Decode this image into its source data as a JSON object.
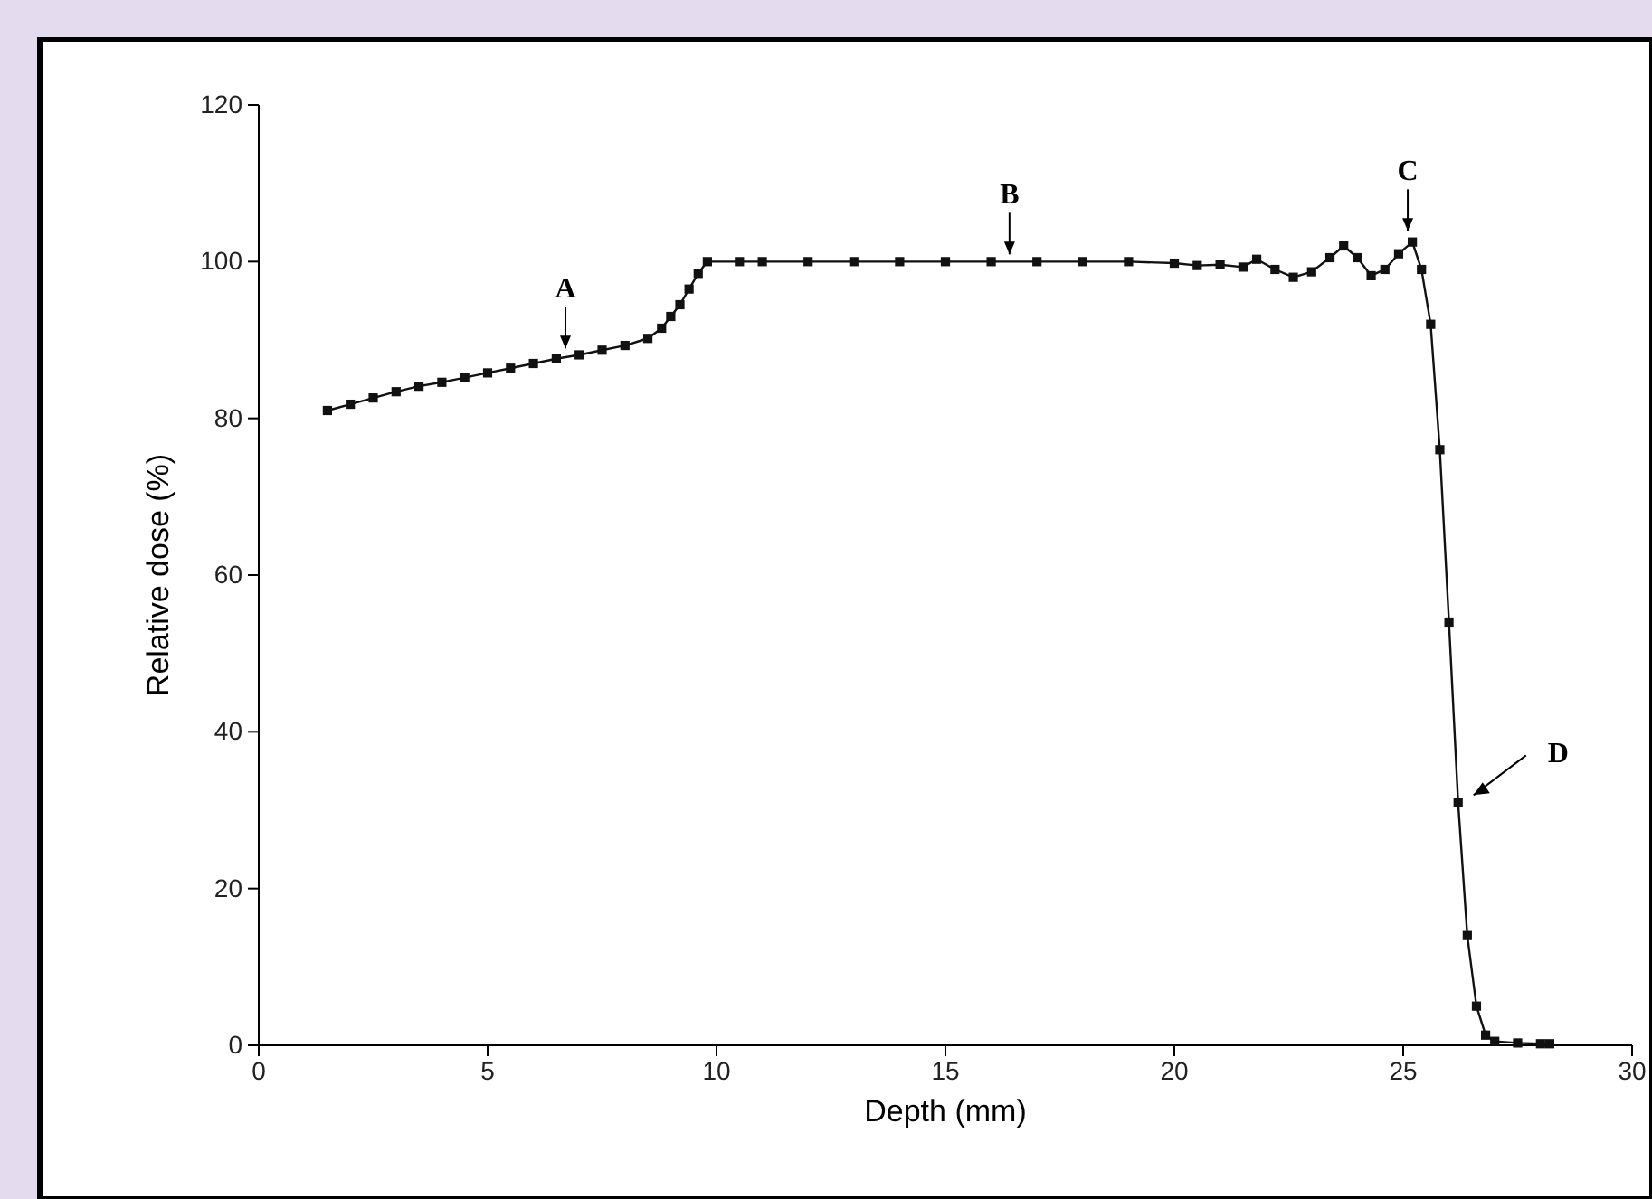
{
  "chart_data": {
    "type": "line",
    "xlabel": "Depth (mm)",
    "ylabel": "Relative dose (%)",
    "xlim": [
      0,
      30
    ],
    "ylim": [
      0,
      120
    ],
    "xticks": [
      0,
      5,
      10,
      15,
      20,
      25,
      30
    ],
    "yticks": [
      0,
      20,
      40,
      60,
      80,
      100,
      120
    ],
    "marker": "square",
    "grid": false,
    "series": [
      {
        "color": "#111111",
        "x": [
          1.5,
          2,
          2.5,
          3,
          3.5,
          4,
          4.5,
          5,
          5.5,
          6,
          6.5,
          7,
          7.5,
          8,
          8.5,
          8.8,
          9,
          9.2,
          9.4,
          9.6,
          9.8,
          10.5,
          11,
          12,
          13,
          14,
          15,
          16,
          17,
          18,
          19,
          20,
          20.5,
          21,
          21.5,
          21.8,
          22.2,
          22.6,
          23,
          23.4,
          23.7,
          24,
          24.3,
          24.6,
          24.9,
          25.2,
          25.4,
          25.6,
          25.8,
          26,
          26.2,
          26.4,
          26.6,
          26.8,
          27,
          27.5,
          28,
          28.2
        ],
        "values": [
          81,
          81.8,
          82.6,
          83.4,
          84.1,
          84.6,
          85.2,
          85.8,
          86.4,
          87,
          87.6,
          88.1,
          88.7,
          89.3,
          90.2,
          91.5,
          93,
          94.5,
          96.5,
          98.5,
          100,
          100,
          100,
          100,
          100,
          100,
          100,
          100,
          100,
          100,
          100,
          99.8,
          99.5,
          99.6,
          99.3,
          100.3,
          99,
          98,
          98.7,
          100.5,
          102,
          100.5,
          98.2,
          99,
          101,
          102.5,
          99,
          92,
          76,
          54,
          31,
          14,
          5,
          1.3,
          0.5,
          0.3,
          0.2,
          0.2
        ]
      }
    ],
    "annotations": [
      {
        "text": "A",
        "x": 6.7,
        "y": 88
      },
      {
        "text": "B",
        "x": 16.4,
        "y": 100
      },
      {
        "text": "C",
        "x": 25.1,
        "y": 103
      },
      {
        "text": "D",
        "x": 26.3,
        "y": 31
      }
    ]
  }
}
